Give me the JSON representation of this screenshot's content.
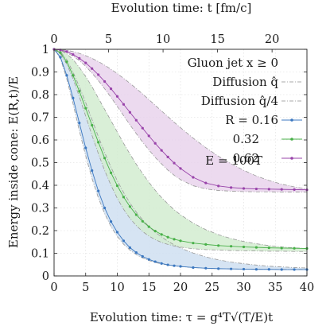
{
  "chart_data": {
    "type": "line",
    "xlabel_bottom": "Evolution time: τ = g⁴T√(T/E)t",
    "xlabel_top": "Evolution time: t [fm/c]",
    "ylabel": "Energy inside cone: E(R,t)/E",
    "xlim": [
      0,
      40
    ],
    "ylim": [
      0,
      1
    ],
    "top_xlim": [
      0,
      23.2
    ],
    "x_ticks": [
      "0",
      "5",
      "10",
      "15",
      "20",
      "25",
      "30",
      "35",
      "40"
    ],
    "top_x_ticks": [
      "0",
      "5",
      "10",
      "15",
      "20"
    ],
    "y_ticks": [
      "0",
      "0.1",
      "0.2",
      "0.3",
      "0.4",
      "0.5",
      "0.6",
      "0.7",
      "0.8",
      "0.9",
      "1"
    ],
    "grid": true,
    "legend_position": "top-right",
    "legend": {
      "header": "Gluon jet   x ≥ 0",
      "entries": [
        {
          "label": "Diffusion q̂",
          "style": "dash-dot",
          "color": "#a8a8a8"
        },
        {
          "label": "Diffusion q̂/4",
          "style": "dash-dot",
          "color": "#a8a8a8"
        },
        {
          "label": "R = 0.16",
          "style": "line-marker",
          "color": "#3c78c0"
        },
        {
          "label": "0.32",
          "style": "line-marker",
          "color": "#48b048"
        },
        {
          "label": "0.62",
          "style": "line-marker",
          "color": "#9944aa"
        }
      ],
      "footer": "E = 100T"
    },
    "series": [
      {
        "name": "R = 0.16",
        "color": "#3c78c0",
        "band_fill": "#cfdff1",
        "x": [
          0,
          1,
          2,
          3,
          4,
          5,
          6,
          7,
          8,
          9,
          10,
          11,
          12,
          13,
          14,
          15,
          16,
          17,
          18,
          19,
          20,
          22,
          24,
          26,
          28,
          30,
          32,
          34,
          36,
          38,
          40
        ],
        "values": [
          1.0,
          0.965,
          0.885,
          0.785,
          0.675,
          0.565,
          0.465,
          0.375,
          0.3,
          0.24,
          0.193,
          0.155,
          0.125,
          0.103,
          0.086,
          0.073,
          0.063,
          0.055,
          0.049,
          0.045,
          0.042,
          0.037,
          0.034,
          0.032,
          0.031,
          0.03,
          0.029,
          0.029,
          0.028,
          0.028,
          0.028
        ],
        "diffusion_qhat": [
          1.0,
          0.96,
          0.87,
          0.76,
          0.64,
          0.53,
          0.43,
          0.345,
          0.275,
          0.218,
          0.174,
          0.14,
          0.114,
          0.094,
          0.079,
          0.068,
          0.059,
          0.053,
          0.048,
          0.044,
          0.041,
          0.037,
          0.034,
          0.032,
          0.031,
          0.03,
          0.03,
          0.029,
          0.029,
          0.029,
          0.029
        ],
        "diffusion_qhat_over_4": [
          1.0,
          0.99,
          0.955,
          0.9,
          0.835,
          0.765,
          0.69,
          0.615,
          0.545,
          0.48,
          0.42,
          0.368,
          0.322,
          0.282,
          0.248,
          0.218,
          0.193,
          0.172,
          0.153,
          0.137,
          0.123,
          0.101,
          0.084,
          0.071,
          0.061,
          0.054,
          0.048,
          0.043,
          0.04,
          0.037,
          0.035
        ]
      },
      {
        "name": "0.32",
        "color": "#48b048",
        "band_fill": "#d2ecd0",
        "x": [
          0,
          1,
          2,
          3,
          4,
          5,
          6,
          7,
          8,
          9,
          10,
          11,
          12,
          13,
          14,
          15,
          16,
          17,
          18,
          19,
          20,
          22,
          24,
          26,
          28,
          30,
          32,
          34,
          36,
          38,
          40
        ],
        "values": [
          1.0,
          0.985,
          0.945,
          0.885,
          0.815,
          0.74,
          0.665,
          0.59,
          0.52,
          0.455,
          0.398,
          0.348,
          0.306,
          0.27,
          0.241,
          0.217,
          0.198,
          0.183,
          0.171,
          0.162,
          0.155,
          0.145,
          0.139,
          0.134,
          0.131,
          0.128,
          0.126,
          0.124,
          0.123,
          0.122,
          0.121
        ],
        "diffusion_qhat": [
          1.0,
          0.98,
          0.935,
          0.87,
          0.79,
          0.705,
          0.62,
          0.54,
          0.465,
          0.4,
          0.342,
          0.294,
          0.254,
          0.222,
          0.196,
          0.176,
          0.16,
          0.148,
          0.139,
          0.132,
          0.127,
          0.12,
          0.116,
          0.114,
          0.112,
          0.111,
          0.11,
          0.109,
          0.109,
          0.108,
          0.108
        ],
        "diffusion_qhat_over_4": [
          1.0,
          0.995,
          0.98,
          0.955,
          0.92,
          0.88,
          0.835,
          0.785,
          0.735,
          0.685,
          0.635,
          0.585,
          0.538,
          0.493,
          0.452,
          0.413,
          0.378,
          0.346,
          0.318,
          0.292,
          0.27,
          0.233,
          0.204,
          0.182,
          0.165,
          0.152,
          0.142,
          0.134,
          0.128,
          0.124,
          0.121
        ]
      },
      {
        "name": "0.62",
        "color": "#9944aa",
        "band_fill": "#e9d4ec",
        "x": [
          0,
          1,
          2,
          3,
          4,
          5,
          6,
          7,
          8,
          9,
          10,
          11,
          12,
          13,
          14,
          15,
          16,
          17,
          18,
          19,
          20,
          22,
          24,
          26,
          28,
          30,
          32,
          34,
          36,
          38,
          40
        ],
        "values": [
          1.0,
          0.997,
          0.99,
          0.977,
          0.96,
          0.94,
          0.915,
          0.888,
          0.858,
          0.826,
          0.792,
          0.757,
          0.722,
          0.687,
          0.652,
          0.618,
          0.585,
          0.554,
          0.525,
          0.498,
          0.474,
          0.435,
          0.41,
          0.397,
          0.39,
          0.386,
          0.384,
          0.383,
          0.382,
          0.381,
          0.38
        ],
        "diffusion_qhat": [
          1.0,
          0.995,
          0.985,
          0.97,
          0.95,
          0.925,
          0.895,
          0.862,
          0.826,
          0.788,
          0.748,
          0.707,
          0.667,
          0.628,
          0.591,
          0.556,
          0.523,
          0.494,
          0.467,
          0.444,
          0.425,
          0.398,
          0.384,
          0.377,
          0.374,
          0.372,
          0.371,
          0.371,
          0.37,
          0.37,
          0.37
        ],
        "diffusion_qhat_over_4": [
          1.0,
          0.999,
          0.996,
          0.99,
          0.982,
          0.972,
          0.96,
          0.946,
          0.93,
          0.912,
          0.893,
          0.872,
          0.85,
          0.827,
          0.803,
          0.778,
          0.753,
          0.728,
          0.703,
          0.678,
          0.654,
          0.608,
          0.566,
          0.528,
          0.495,
          0.466,
          0.441,
          0.421,
          0.405,
          0.393,
          0.384
        ]
      }
    ]
  }
}
